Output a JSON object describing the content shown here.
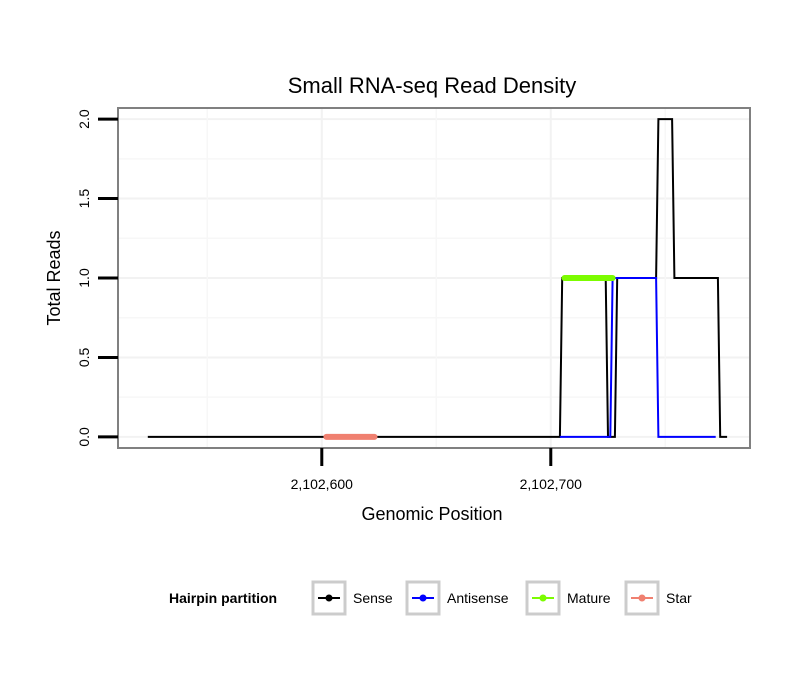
{
  "chart_data": {
    "type": "line",
    "title": "Small RNA-seq Read Density",
    "xlabel": "Genomic Position",
    "ylabel": "Total Reads",
    "xlim": [
      2102511,
      2102787
    ],
    "ylim": [
      -0.07,
      2.07
    ],
    "x_ticks": [
      2102600,
      2102700
    ],
    "x_tick_labels": [
      "2,102,600",
      "2,102,700"
    ],
    "y_ticks": [
      0,
      0.5,
      1,
      1.5,
      2
    ],
    "y_tick_labels": [
      "0.0",
      "0.5",
      "1.0",
      "1.5",
      "2.0"
    ],
    "grid": true,
    "legend": {
      "title": "Hairpin partition",
      "placement": "bottom",
      "entries": [
        "Sense",
        "Antisense",
        "Mature",
        "Star"
      ]
    },
    "series": [
      {
        "name": "Sense",
        "color": "#000000",
        "x": [
          2102524,
          2102704,
          2102705,
          2102724,
          2102725,
          2102728,
          2102729,
          2102746,
          2102747,
          2102753,
          2102754,
          2102773,
          2102774,
          2102777
        ],
        "y": [
          0,
          0,
          1,
          1,
          0,
          0,
          1,
          1,
          2,
          2,
          1,
          1,
          0,
          0
        ]
      },
      {
        "name": "Antisense",
        "color": "#0000ff",
        "x": [
          2102704,
          2102726,
          2102727,
          2102746,
          2102747,
          2102772
        ],
        "y": [
          0,
          0,
          1,
          1,
          0,
          0
        ]
      },
      {
        "name": "Mature",
        "color": "#7cfc00",
        "x": [
          2102706,
          2102727
        ],
        "y": [
          1,
          1
        ]
      },
      {
        "name": "Star",
        "color": "#f08070",
        "x": [
          2102602,
          2102623
        ],
        "y": [
          0,
          0
        ]
      }
    ]
  }
}
